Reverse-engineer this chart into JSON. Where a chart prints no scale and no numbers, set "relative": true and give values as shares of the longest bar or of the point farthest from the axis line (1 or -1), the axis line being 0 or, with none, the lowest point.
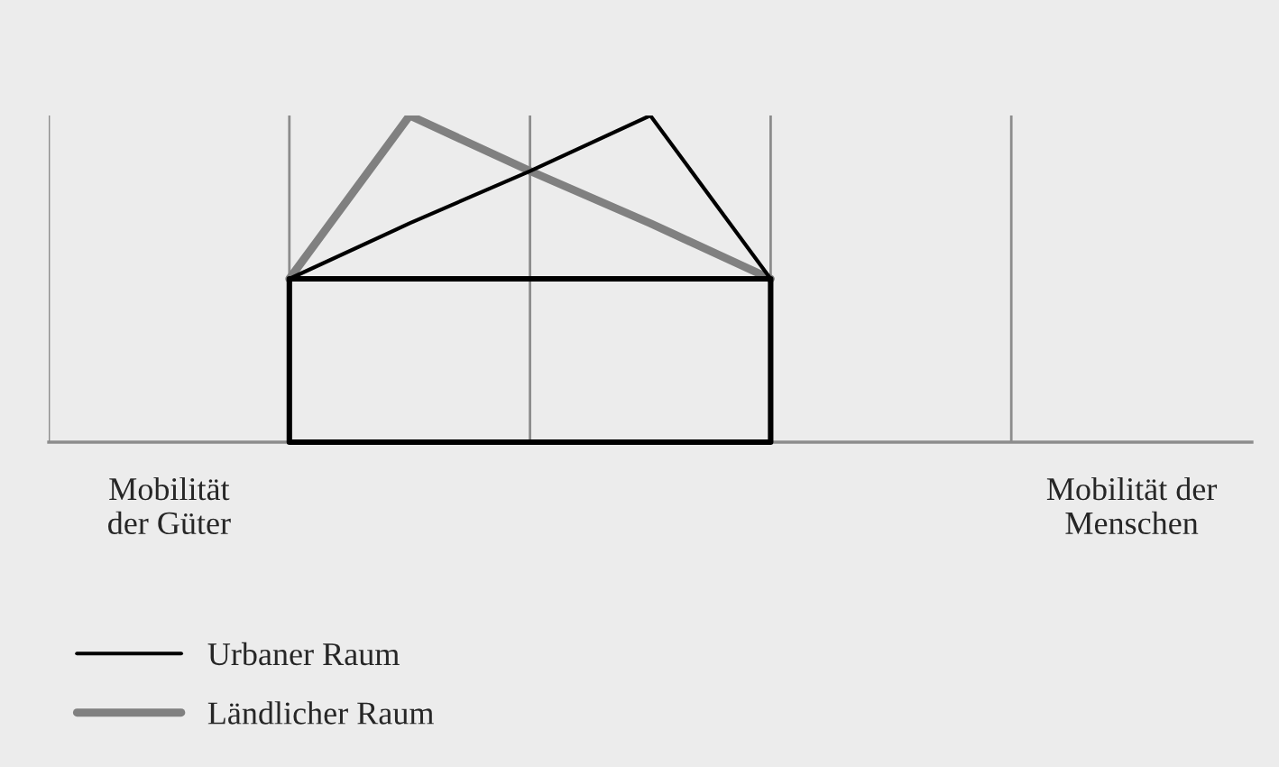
{
  "chart_data": {
    "type": "line",
    "relative": true,
    "categories": [
      null,
      "Mobilität\nder Güter",
      null,
      null,
      null,
      null,
      null,
      null,
      null,
      "Mobilität der\nMenschen",
      null
    ],
    "grid": "x",
    "legend": "bottom left",
    "series": [
      {
        "name": "Urbaner Raum",
        "color": "#000000",
        "values": [
          null,
          null,
          0.5,
          0.67,
          0.83,
          1,
          0.5,
          null,
          null,
          null,
          null
        ]
      },
      {
        "name": "Ländlicher Raum",
        "color": "#808080",
        "values": [
          null,
          null,
          0.5,
          1,
          0.83,
          0.67,
          0.5,
          null,
          null,
          null,
          null
        ]
      }
    ]
  }
}
